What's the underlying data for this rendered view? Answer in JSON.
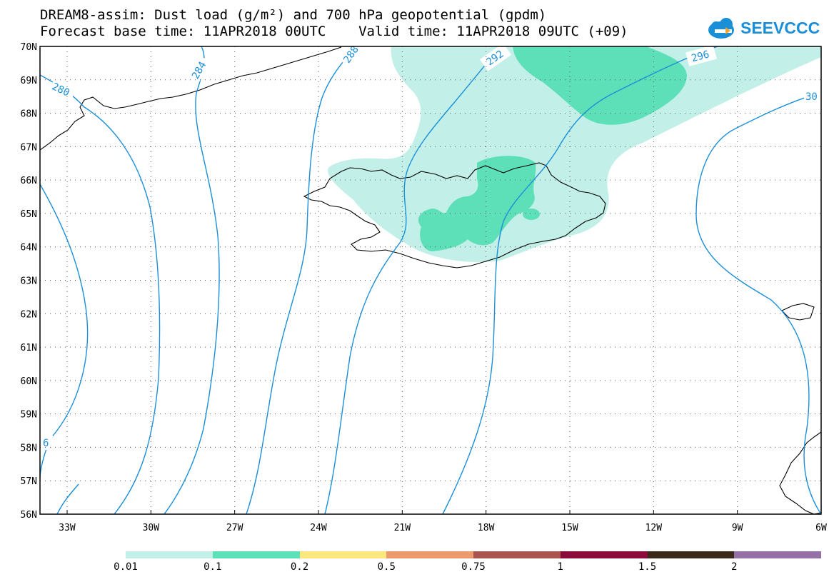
{
  "header": {
    "title_line1": "DREAM8-assim: Dust load (g/m²) and 700 hPa geopotential (gpdm)",
    "title_line2": "Forecast base time: 11APR2018 00UTC    Valid time: 11APR2018 09UTC (+09)"
  },
  "logo": {
    "text": "SEEVCCC",
    "icon": "cloud-icon",
    "color": "#1a8fd8"
  },
  "map": {
    "lat_labels": [
      "70N",
      "69N",
      "68N",
      "67N",
      "66N",
      "65N",
      "64N",
      "63N",
      "62N",
      "61N",
      "60N",
      "59N",
      "58N",
      "57N",
      "56N"
    ],
    "lon_labels": [
      "33W",
      "30W",
      "27W",
      "24W",
      "21W",
      "18W",
      "15W",
      "12W",
      "9W",
      "6W"
    ],
    "contour_labels": [
      "280",
      "284",
      "288",
      "292",
      "296",
      "30",
      "6"
    ],
    "contour_color": "#1a8fd8"
  },
  "legend": {
    "colors": [
      "#c2f0e8",
      "#5ddfb8",
      "#fbe77e",
      "#ec9a6d",
      "#a9564e",
      "#8b0c3b",
      "#3b2a1a",
      "#9570a7"
    ],
    "labels": [
      "0.01",
      "0.1",
      "0.2",
      "0.5",
      "0.75",
      "1",
      "1.5",
      "2"
    ]
  }
}
